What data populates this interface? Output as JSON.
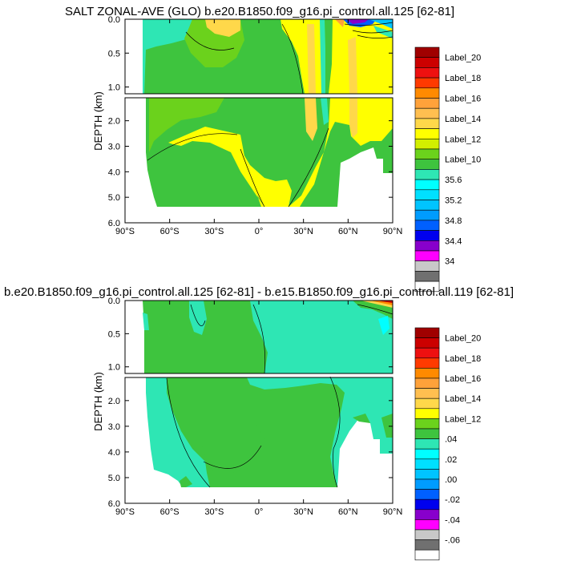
{
  "chart_data": [
    {
      "type": "heatmap",
      "title": "SALT ZONAL-AVE (GLO) b.e20.B1850.f09_g16.pi_control.all.125 [62-81]",
      "ylabel": "DEPTH (km)",
      "x_ticks": [
        "90°S",
        "60°S",
        "30°S",
        "0°",
        "30°N",
        "60°N",
        "90°N"
      ],
      "y_ticks_upper": [
        "0.0",
        "0.5",
        "1.0"
      ],
      "y_ticks_lower": [
        "2.0",
        "3.0",
        "4.0",
        "5.0",
        "6.0"
      ],
      "xlim": [
        -90,
        90
      ],
      "ylim_upper": [
        0.0,
        1.1
      ],
      "ylim_lower": [
        1.1,
        6.0
      ],
      "legend_labels": [
        "Label_20",
        "Label_18",
        "Label_16",
        "Label_14",
        "Label_12",
        "Label_10",
        "35.6",
        "35.2",
        "34.8",
        "34.4",
        "34"
      ],
      "colorbar_colors": [
        "#a00000",
        "#cc0000",
        "#ee1010",
        "#ff3a00",
        "#ff8a00",
        "#ffa23a",
        "#ffbf50",
        "#ffd84a",
        "#ffff00",
        "#d2ef00",
        "#6bd21c",
        "#3ec43e",
        "#2ee6b4",
        "#00ffff",
        "#00e0ff",
        "#00c4ff",
        "#009cff",
        "#0060ff",
        "#0000ee",
        "#8800cc",
        "#ff00ff",
        "#c8c8c8",
        "#707070",
        "#ffffff"
      ]
    },
    {
      "type": "heatmap",
      "title": "b.e20.B1850.f09_g16.pi_control.all.125 [62-81] - b.e15.B1850.f09_g16.pi_control.all.119 [62-81]",
      "ylabel": "DEPTH (km)",
      "x_ticks": [
        "90°S",
        "60°S",
        "30°S",
        "0°",
        "30°N",
        "60°N",
        "90°N"
      ],
      "y_ticks_upper": [
        "0.0",
        "0.5",
        "1.0"
      ],
      "y_ticks_lower": [
        "2.0",
        "3.0",
        "4.0",
        "5.0",
        "6.0"
      ],
      "xlim": [
        -90,
        90
      ],
      "ylim_upper": [
        0.0,
        1.1
      ],
      "ylim_lower": [
        1.1,
        6.0
      ],
      "legend_labels": [
        "Label_20",
        "Label_18",
        "Label_16",
        "Label_14",
        "Label_12",
        ".04",
        ".02",
        ".00",
        "-.02",
        "-.04",
        "-.06"
      ],
      "colorbar_colors": [
        "#a00000",
        "#cc0000",
        "#ee1010",
        "#ff3a00",
        "#ff8a00",
        "#ffa23a",
        "#ffbf50",
        "#ffd84a",
        "#ffff00",
        "#6bd21c",
        "#3ec43e",
        "#2ee6b4",
        "#00ffff",
        "#00e0ff",
        "#00c4ff",
        "#009cff",
        "#0060ff",
        "#0000ee",
        "#8800cc",
        "#ff00ff",
        "#c8c8c8",
        "#707070",
        "#ffffff"
      ]
    }
  ]
}
